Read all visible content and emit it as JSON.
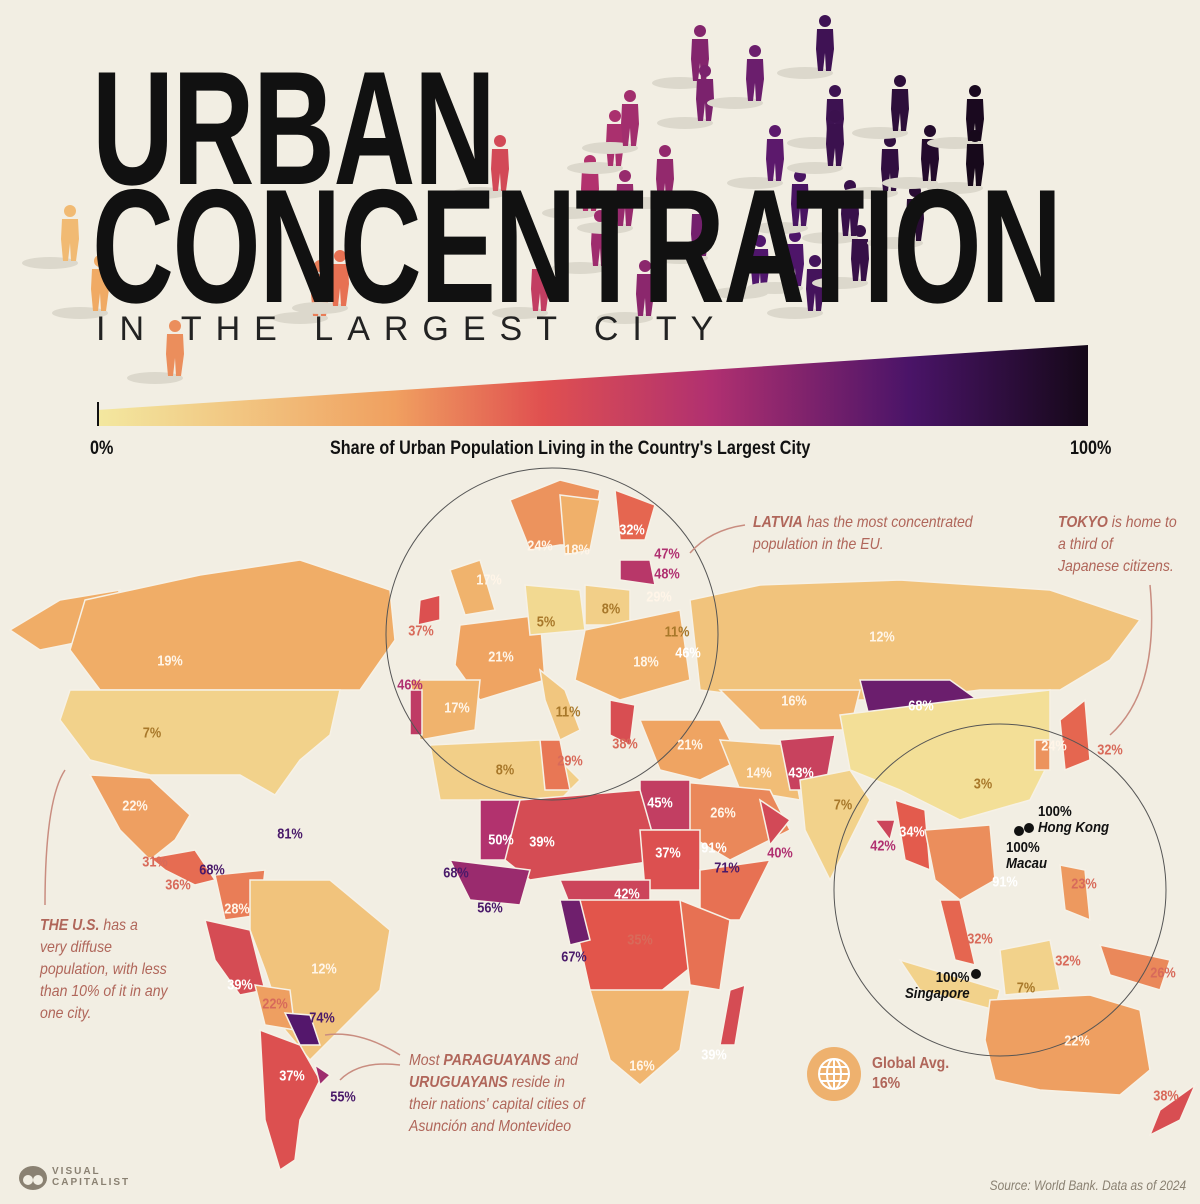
{
  "title": {
    "line1": "URBAN",
    "line2": "CONCENTRATION",
    "subtitle": "IN THE LARGEST CITY"
  },
  "legend": {
    "min_label": "0%",
    "max_label": "100%",
    "caption": "Share of Urban Population Living in the Country's Largest City",
    "colors": [
      "#f3e8a0",
      "#f0a060",
      "#e05050",
      "#b03070",
      "#5a1a70",
      "#150818"
    ]
  },
  "annotations": {
    "latvia": {
      "bold": "LATVIA",
      "text": " has the most concentrated population in the EU."
    },
    "tokyo": {
      "bold": "TOKYO",
      "text": " is home to a third of Japanese citizens."
    },
    "us": {
      "bold": "THE U.S.",
      "text": " has a very diffuse population, with less than 10% of it in any one city."
    },
    "paraguay": {
      "prefix": "Most ",
      "bold1": "PARAGUAYANS",
      "mid": " and ",
      "bold2": "URUGUAYANS",
      "text": " reside in their nations' capital cities of Asunción and Montevideo"
    }
  },
  "cities": [
    {
      "value": "100%",
      "name": "Hong Kong"
    },
    {
      "value": "100%",
      "name": "Macau"
    },
    {
      "value": "100%",
      "name": "Singapore"
    }
  ],
  "global_avg": {
    "label": "Global Avg.",
    "value": "16%",
    "icon": "globe-icon"
  },
  "labels": [
    {
      "text": "19%",
      "v": 19
    },
    {
      "text": "7%",
      "v": 7
    },
    {
      "text": "22%",
      "v": 22
    },
    {
      "text": "31%",
      "v": 31
    },
    {
      "text": "36%",
      "v": 36
    },
    {
      "text": "68%",
      "v": 68
    },
    {
      "text": "81%",
      "v": 81
    },
    {
      "text": "28%",
      "v": 28
    },
    {
      "text": "12%",
      "v": 12
    },
    {
      "text": "39%",
      "v": 39
    },
    {
      "text": "22%",
      "v": 22
    },
    {
      "text": "74%",
      "v": 74
    },
    {
      "text": "37%",
      "v": 37
    },
    {
      "text": "55%",
      "v": 55
    },
    {
      "text": "24%",
      "v": 24
    },
    {
      "text": "18%",
      "v": 18
    },
    {
      "text": "32%",
      "v": 32
    },
    {
      "text": "47%",
      "v": 47
    },
    {
      "text": "48%",
      "v": 48
    },
    {
      "text": "17%",
      "v": 17
    },
    {
      "text": "37%",
      "v": 37
    },
    {
      "text": "29%",
      "v": 29
    },
    {
      "text": "5%",
      "v": 5
    },
    {
      "text": "8%",
      "v": 8
    },
    {
      "text": "11%",
      "v": 11
    },
    {
      "text": "46%",
      "v": 46
    },
    {
      "text": "21%",
      "v": 21
    },
    {
      "text": "18%",
      "v": 18
    },
    {
      "text": "46%",
      "v": 46
    },
    {
      "text": "17%",
      "v": 17
    },
    {
      "text": "11%",
      "v": 11
    },
    {
      "text": "38%",
      "v": 38
    },
    {
      "text": "8%",
      "v": 8
    },
    {
      "text": "29%",
      "v": 29
    },
    {
      "text": "12%",
      "v": 12
    },
    {
      "text": "16%",
      "v": 16
    },
    {
      "text": "68%",
      "v": 68
    },
    {
      "text": "21%",
      "v": 21
    },
    {
      "text": "14%",
      "v": 14
    },
    {
      "text": "43%",
      "v": 43
    },
    {
      "text": "7%",
      "v": 7
    },
    {
      "text": "24%",
      "v": 24
    },
    {
      "text": "32%",
      "v": 32
    },
    {
      "text": "45%",
      "v": 45
    },
    {
      "text": "26%",
      "v": 26
    },
    {
      "text": "50%",
      "v": 50
    },
    {
      "text": "39%",
      "v": 39
    },
    {
      "text": "68%",
      "v": 68
    },
    {
      "text": "37%",
      "v": 37
    },
    {
      "text": "91%",
      "v": 91
    },
    {
      "text": "71%",
      "v": 71
    },
    {
      "text": "40%",
      "v": 40
    },
    {
      "text": "56%",
      "v": 56
    },
    {
      "text": "42%",
      "v": 42
    },
    {
      "text": "67%",
      "v": 67
    },
    {
      "text": "35%",
      "v": 35
    },
    {
      "text": "39%",
      "v": 39
    },
    {
      "text": "16%",
      "v": 16
    },
    {
      "text": "3%",
      "v": 3
    },
    {
      "text": "42%",
      "v": 42
    },
    {
      "text": "34%",
      "v": 34
    },
    {
      "text": "91%",
      "v": 91
    },
    {
      "text": "23%",
      "v": 23
    },
    {
      "text": "32%",
      "v": 32
    },
    {
      "text": "32%",
      "v": 32
    },
    {
      "text": "7%",
      "v": 7
    },
    {
      "text": "26%",
      "v": 26
    },
    {
      "text": "22%",
      "v": 22
    },
    {
      "text": "38%",
      "v": 38
    }
  ],
  "footer": {
    "logo_line1": "VISUAL",
    "logo_line2": "CAPITALIST",
    "source": "Source: World Bank. Data as of 2024"
  }
}
